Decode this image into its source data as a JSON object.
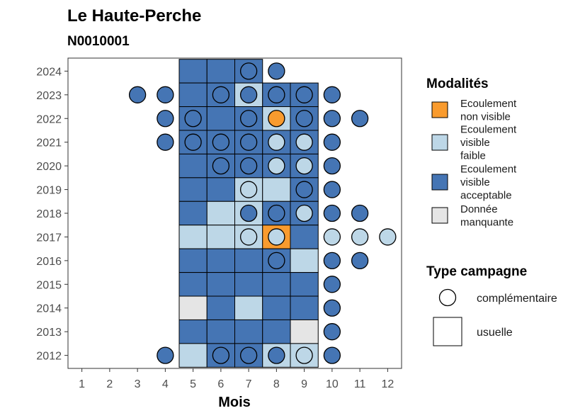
{
  "chart_data": {
    "type": "heatmap",
    "title": "Le Haute-Perche",
    "subtitle": "N0010001",
    "xlabel": "Mois",
    "ylabel": "",
    "x_ticks": [
      1,
      2,
      3,
      4,
      5,
      6,
      7,
      8,
      9,
      10,
      11,
      12
    ],
    "y_ticks": [
      2012,
      2013,
      2014,
      2015,
      2016,
      2017,
      2018,
      2019,
      2020,
      2021,
      2022,
      2023,
      2024
    ],
    "xlim": [
      0.5,
      12.5
    ],
    "ylim": [
      2011.45,
      2024.55
    ],
    "colors": {
      "non_visible": "#f99b2e",
      "faible": "#bdd7e7",
      "acceptable": "#4575b4",
      "manquante": "#e5e5e5"
    },
    "legend_modalites": {
      "title": "Modalités",
      "items": [
        {
          "key": "non_visible",
          "label": [
            "Ecoulement",
            "non visible"
          ]
        },
        {
          "key": "faible",
          "label": [
            "Ecoulement",
            "visible",
            "faible"
          ]
        },
        {
          "key": "acceptable",
          "label": [
            "Ecoulement",
            "visible",
            "acceptable"
          ]
        },
        {
          "key": "manquante",
          "label": [
            "Donnée",
            "manquante"
          ]
        }
      ]
    },
    "legend_campagne": {
      "title": "Type campagne",
      "items": [
        {
          "shape": "circle",
          "label": "complémentaire"
        },
        {
          "shape": "square",
          "label": "usuelle"
        }
      ]
    },
    "squares": [
      [
        2024,
        5,
        "acceptable"
      ],
      [
        2024,
        6,
        "acceptable"
      ],
      [
        2024,
        7,
        "acceptable"
      ],
      [
        2023,
        5,
        "acceptable"
      ],
      [
        2023,
        6,
        "acceptable"
      ],
      [
        2023,
        7,
        "faible"
      ],
      [
        2023,
        8,
        "acceptable"
      ],
      [
        2023,
        9,
        "acceptable"
      ],
      [
        2022,
        5,
        "acceptable"
      ],
      [
        2022,
        6,
        "acceptable"
      ],
      [
        2022,
        7,
        "acceptable"
      ],
      [
        2022,
        8,
        "faible"
      ],
      [
        2022,
        9,
        "acceptable"
      ],
      [
        2021,
        5,
        "acceptable"
      ],
      [
        2021,
        6,
        "acceptable"
      ],
      [
        2021,
        7,
        "acceptable"
      ],
      [
        2021,
        8,
        "acceptable"
      ],
      [
        2021,
        9,
        "acceptable"
      ],
      [
        2020,
        5,
        "acceptable"
      ],
      [
        2020,
        6,
        "acceptable"
      ],
      [
        2020,
        7,
        "acceptable"
      ],
      [
        2020,
        8,
        "acceptable"
      ],
      [
        2020,
        9,
        "acceptable"
      ],
      [
        2019,
        5,
        "acceptable"
      ],
      [
        2019,
        6,
        "acceptable"
      ],
      [
        2019,
        7,
        "faible"
      ],
      [
        2019,
        8,
        "faible"
      ],
      [
        2019,
        9,
        "acceptable"
      ],
      [
        2018,
        5,
        "acceptable"
      ],
      [
        2018,
        6,
        "faible"
      ],
      [
        2018,
        7,
        "faible"
      ],
      [
        2018,
        8,
        "acceptable"
      ],
      [
        2018,
        9,
        "acceptable"
      ],
      [
        2017,
        5,
        "faible"
      ],
      [
        2017,
        6,
        "faible"
      ],
      [
        2017,
        7,
        "faible"
      ],
      [
        2017,
        8,
        "non_visible"
      ],
      [
        2017,
        9,
        "acceptable"
      ],
      [
        2016,
        5,
        "acceptable"
      ],
      [
        2016,
        6,
        "acceptable"
      ],
      [
        2016,
        7,
        "acceptable"
      ],
      [
        2016,
        8,
        "acceptable"
      ],
      [
        2016,
        9,
        "faible"
      ],
      [
        2015,
        5,
        "acceptable"
      ],
      [
        2015,
        6,
        "acceptable"
      ],
      [
        2015,
        7,
        "acceptable"
      ],
      [
        2015,
        8,
        "acceptable"
      ],
      [
        2015,
        9,
        "acceptable"
      ],
      [
        2014,
        5,
        "manquante"
      ],
      [
        2014,
        6,
        "acceptable"
      ],
      [
        2014,
        7,
        "faible"
      ],
      [
        2014,
        8,
        "acceptable"
      ],
      [
        2014,
        9,
        "acceptable"
      ],
      [
        2013,
        5,
        "acceptable"
      ],
      [
        2013,
        6,
        "acceptable"
      ],
      [
        2013,
        7,
        "acceptable"
      ],
      [
        2013,
        8,
        "acceptable"
      ],
      [
        2013,
        9,
        "manquante"
      ],
      [
        2012,
        5,
        "faible"
      ],
      [
        2012,
        6,
        "acceptable"
      ],
      [
        2012,
        7,
        "acceptable"
      ],
      [
        2012,
        8,
        "faible"
      ],
      [
        2012,
        9,
        "faible"
      ]
    ],
    "circles": [
      [
        2024,
        7,
        "acceptable"
      ],
      [
        2024,
        8,
        "acceptable"
      ],
      [
        2023,
        3,
        "acceptable"
      ],
      [
        2023,
        4,
        "acceptable"
      ],
      [
        2023,
        6,
        "acceptable"
      ],
      [
        2023,
        7,
        "acceptable"
      ],
      [
        2023,
        8,
        "acceptable"
      ],
      [
        2023,
        9,
        "acceptable"
      ],
      [
        2023,
        10,
        "acceptable"
      ],
      [
        2022,
        4,
        "acceptable"
      ],
      [
        2022,
        5,
        "acceptable"
      ],
      [
        2022,
        7,
        "acceptable"
      ],
      [
        2022,
        8,
        "non_visible"
      ],
      [
        2022,
        9,
        "acceptable"
      ],
      [
        2022,
        10,
        "acceptable"
      ],
      [
        2022,
        11,
        "acceptable"
      ],
      [
        2021,
        4,
        "acceptable"
      ],
      [
        2021,
        5,
        "acceptable"
      ],
      [
        2021,
        6,
        "acceptable"
      ],
      [
        2021,
        7,
        "acceptable"
      ],
      [
        2021,
        8,
        "faible"
      ],
      [
        2021,
        9,
        "faible"
      ],
      [
        2021,
        10,
        "acceptable"
      ],
      [
        2020,
        6,
        "acceptable"
      ],
      [
        2020,
        7,
        "acceptable"
      ],
      [
        2020,
        8,
        "faible"
      ],
      [
        2020,
        9,
        "faible"
      ],
      [
        2020,
        10,
        "acceptable"
      ],
      [
        2019,
        7,
        "faible"
      ],
      [
        2019,
        9,
        "acceptable"
      ],
      [
        2019,
        10,
        "acceptable"
      ],
      [
        2018,
        7,
        "acceptable"
      ],
      [
        2018,
        8,
        "acceptable"
      ],
      [
        2018,
        9,
        "faible"
      ],
      [
        2018,
        10,
        "acceptable"
      ],
      [
        2018,
        11,
        "acceptable"
      ],
      [
        2017,
        7,
        "faible"
      ],
      [
        2017,
        8,
        "faible"
      ],
      [
        2017,
        10,
        "faible"
      ],
      [
        2017,
        11,
        "faible"
      ],
      [
        2017,
        12,
        "faible"
      ],
      [
        2016,
        8,
        "acceptable"
      ],
      [
        2016,
        10,
        "acceptable"
      ],
      [
        2016,
        11,
        "acceptable"
      ],
      [
        2015,
        10,
        "acceptable"
      ],
      [
        2014,
        10,
        "acceptable"
      ],
      [
        2013,
        10,
        "acceptable"
      ],
      [
        2012,
        4,
        "acceptable"
      ],
      [
        2012,
        6,
        "acceptable"
      ],
      [
        2012,
        7,
        "acceptable"
      ],
      [
        2012,
        8,
        "acceptable"
      ],
      [
        2012,
        9,
        "faible"
      ],
      [
        2012,
        10,
        "acceptable"
      ]
    ]
  }
}
